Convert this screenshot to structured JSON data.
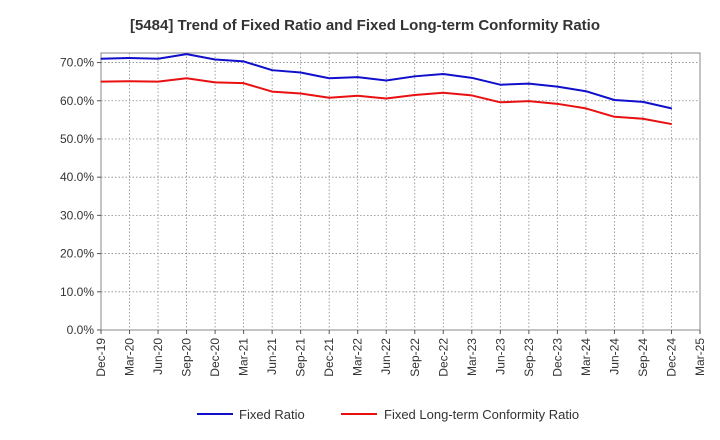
{
  "chart_data": {
    "type": "line",
    "title": "[5484]  Trend of Fixed Ratio and Fixed Long-term Conformity Ratio",
    "xlabel": "",
    "ylabel": "",
    "ylim": [
      0,
      70
    ],
    "yticks": [
      "0.0%",
      "10.0%",
      "20.0%",
      "30.0%",
      "40.0%",
      "50.0%",
      "60.0%",
      "70.0%"
    ],
    "x": [
      "Dec-19",
      "Mar-20",
      "Jun-20",
      "Sep-20",
      "Dec-20",
      "Mar-21",
      "Jun-21",
      "Sep-21",
      "Dec-21",
      "Mar-22",
      "Jun-22",
      "Sep-22",
      "Dec-22",
      "Mar-23",
      "Jun-23",
      "Sep-23",
      "Dec-23",
      "Mar-24",
      "Jun-24",
      "Sep-24",
      "Dec-24",
      "Mar-25"
    ],
    "grid": true,
    "legend_position": "bottom",
    "series": [
      {
        "name": "Fixed Ratio",
        "color": "#1010cc",
        "values": [
          71.0,
          71.2,
          71.0,
          72.2,
          70.8,
          70.3,
          68.0,
          67.4,
          65.9,
          66.2,
          65.3,
          66.4,
          67.0,
          66.0,
          64.2,
          64.5,
          63.7,
          62.5,
          60.2,
          59.7,
          58.0,
          null
        ]
      },
      {
        "name": "Fixed Long-term Conformity Ratio",
        "color": "#e81010",
        "values": [
          65.0,
          65.1,
          65.0,
          65.9,
          64.8,
          64.6,
          62.4,
          61.9,
          60.8,
          61.3,
          60.6,
          61.5,
          62.1,
          61.4,
          59.6,
          59.9,
          59.2,
          58.0,
          55.8,
          55.3,
          53.9,
          null
        ]
      }
    ]
  }
}
